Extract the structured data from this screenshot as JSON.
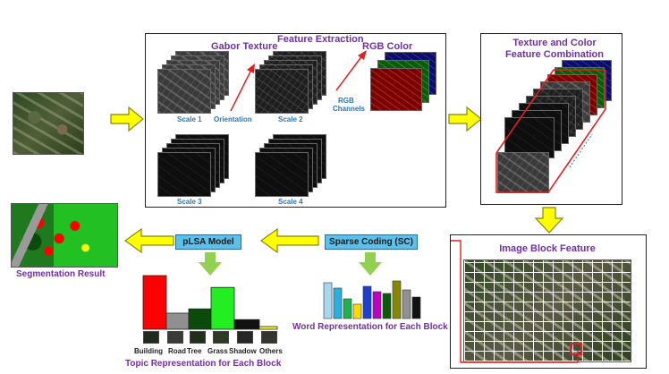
{
  "colors": {
    "title_purple": "#7030a0",
    "label_blue": "#2e75b6",
    "arrow_yellow": "#ffff00",
    "arrow_green": "#92d050",
    "connector_red": "#e02020",
    "sc_box": "#5bc0eb"
  },
  "feature_extraction": {
    "title": "Feature Extraction",
    "gabor_title": "Gabor Texture",
    "rgb_title": "RGB Color",
    "orientation": "Orientation",
    "rgb_channels_line1": "RGB",
    "rgb_channels_line2": "Channels",
    "scale1": "Scale 1",
    "scale2": "Scale 2",
    "scale3": "Scale 3",
    "scale4": "Scale 4"
  },
  "combination": {
    "title_line1": "Texture and Color",
    "title_line2": "Feature Combination"
  },
  "image_block": {
    "title": "Image Block Feature"
  },
  "sparse_coding": {
    "label": "Sparse Coding (SC)",
    "caption": "Word Representation for Each Block"
  },
  "plsa": {
    "label": "pLSA Model",
    "caption": "Topic Representation for Each Block"
  },
  "segmentation": {
    "caption": "Segmentation Result"
  },
  "word_histogram": {
    "colors": [
      "#a8d8f0",
      "#2ab0e0",
      "#22b14c",
      "#ffd800",
      "#1f3fd0",
      "#c000c0",
      "#0a5a0a",
      "#888800",
      "#909090",
      "#111111"
    ],
    "values": [
      40,
      34,
      22,
      16,
      36,
      30,
      28,
      42,
      32,
      24
    ]
  },
  "topic_chart": {
    "categories": [
      "Building",
      "Road",
      "Tree",
      "Grass",
      "Shadow",
      "Others"
    ],
    "colors": [
      "#ff0000",
      "#909090",
      "#0a4a0a",
      "#22ee22",
      "#111111",
      "#ffff00"
    ],
    "values": [
      100,
      30,
      38,
      78,
      18,
      5
    ]
  }
}
